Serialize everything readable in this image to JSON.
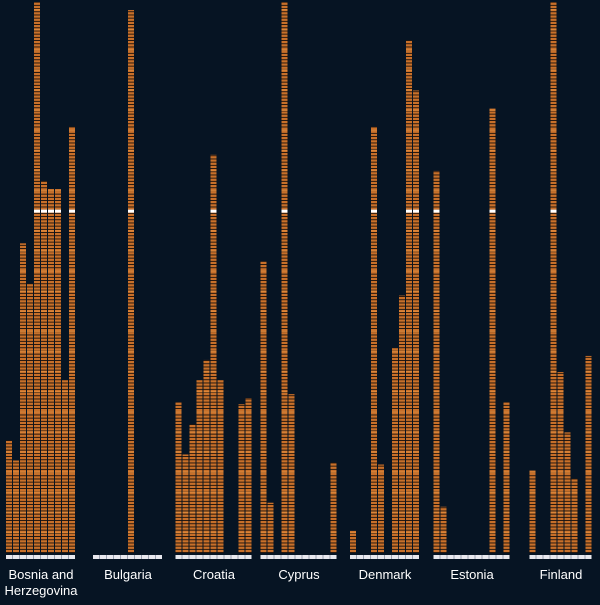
{
  "chart_data": {
    "type": "bar",
    "style": "stacked unit blocks per bar, grouped small multiples",
    "colors": {
      "background": "#061423",
      "bar": "#c8702a",
      "bar_highlight": "#e08a3c",
      "block_gap": "#1a0f08",
      "marker": "#ffffff",
      "baseline": "#e8e8ee",
      "label": "#ffffff"
    },
    "ylim": [
      0,
      275
    ],
    "marker_value": 170,
    "groups": [
      {
        "label": "Bosnia and Herzegovina",
        "label_lines": [
          "Bosnia and",
          "Herzegovina"
        ],
        "values": [
          56,
          46,
          154,
          134,
          274,
          185,
          181,
          181,
          86,
          212
        ]
      },
      {
        "label": "Bulgaria",
        "label_lines": [
          "Bulgaria"
        ],
        "values": [
          0,
          0,
          0,
          0,
          0,
          270,
          0,
          0,
          0,
          0
        ]
      },
      {
        "label": "Croatia",
        "label_lines": [
          "Croatia"
        ],
        "values": [
          75,
          49,
          64,
          86,
          96,
          198,
          86,
          0,
          0,
          74,
          77
        ]
      },
      {
        "label": "Cyprus",
        "label_lines": [
          "Cyprus"
        ],
        "values": [
          145,
          25,
          0,
          274,
          79,
          0,
          0,
          0,
          0,
          0,
          45
        ]
      },
      {
        "label": "Denmark",
        "label_lines": [
          "Denmark"
        ],
        "values": [
          11,
          0,
          0,
          212,
          44,
          0,
          102,
          128,
          255,
          230
        ]
      },
      {
        "label": "Estonia",
        "label_lines": [
          "Estonia"
        ],
        "values": [
          190,
          23,
          0,
          0,
          0,
          0,
          0,
          0,
          221,
          0,
          75
        ]
      },
      {
        "label": "Finland",
        "label_lines": [
          "Finland"
        ],
        "values": [
          41,
          0,
          0,
          274,
          90,
          60,
          37,
          0,
          98
        ]
      }
    ]
  }
}
